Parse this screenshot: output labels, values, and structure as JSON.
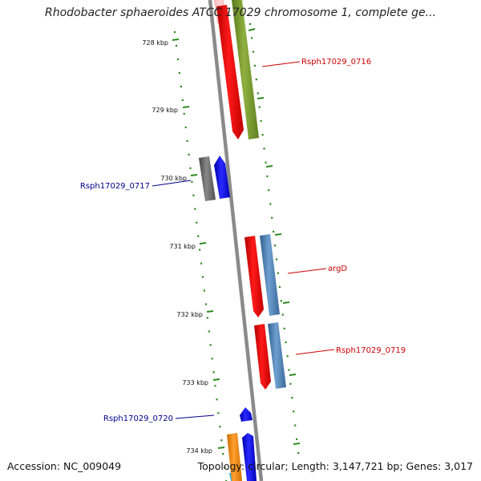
{
  "title": "Rhodobacter sphaeroides ATCC 17029 chromosome 1, complete ge...",
  "footer": {
    "accession": "Accession: NC_009049",
    "summary": "Topology: circular; Length: 3,147,721 bp; Genes: 3,017"
  },
  "colors": {
    "backbone": "#8a8a8a",
    "dots": "#2e8b20",
    "plus_strand_label": "#cc0000",
    "minus_strand_label": "#00008b"
  },
  "ticks": [
    "728 kbp",
    "729 kbp",
    "730 kbp",
    "731 kbp",
    "732 kbp",
    "733 kbp",
    "734 kbp"
  ],
  "gene_labels": [
    {
      "text": "Rsph17029_0716",
      "strand": "plus"
    },
    {
      "text": "Rsph17029_0717",
      "strand": "minus"
    },
    {
      "text": "argD",
      "strand": "plus"
    },
    {
      "text": "Rsph17029_0719",
      "strand": "plus"
    },
    {
      "text": "Rsph17029_0720",
      "strand": "minus"
    }
  ]
}
